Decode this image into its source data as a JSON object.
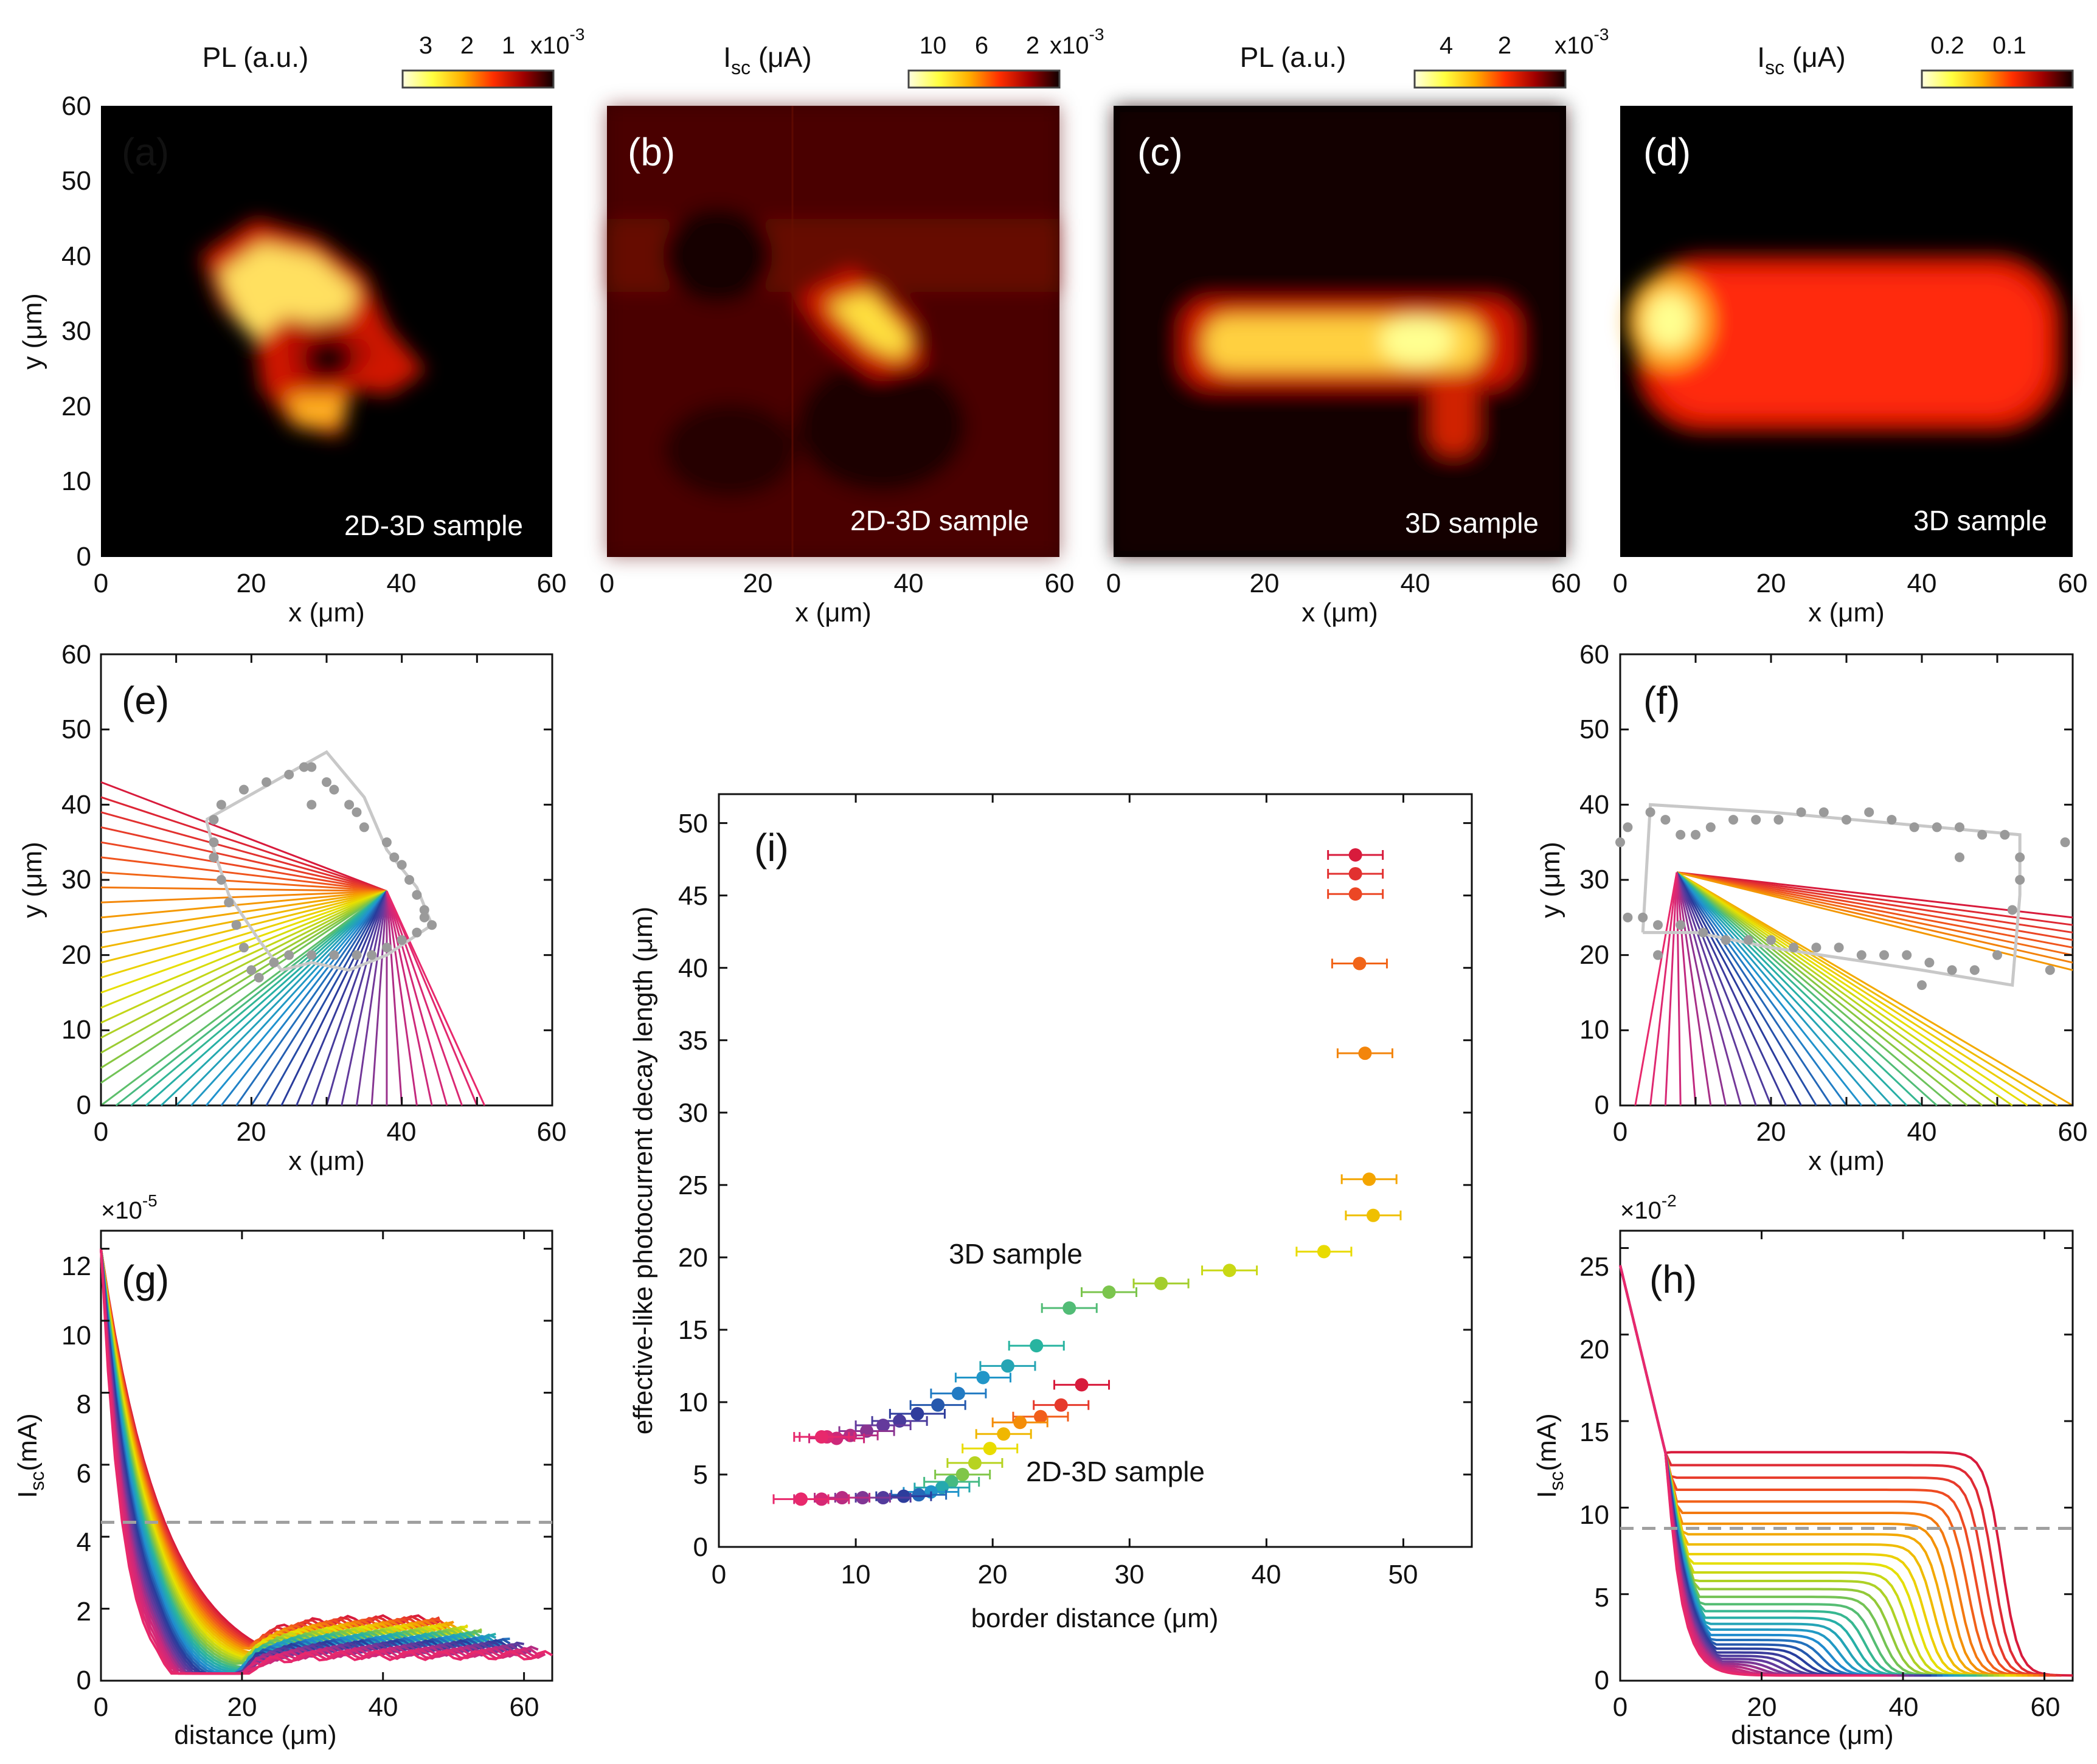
{
  "colors": {
    "hot_colormap": [
      "#ffffe0",
      "#ffff40",
      "#ffd000",
      "#ff8000",
      "#ff2000",
      "#b00000",
      "#500000",
      "#000000"
    ],
    "rainbow_fan": [
      "#d81b3c",
      "#f05020",
      "#f5a000",
      "#e8e000",
      "#8cc83c",
      "#28b4a0",
      "#2090d0",
      "#283c9c",
      "#6a3a9c",
      "#c8287c",
      "#e8286c"
    ],
    "boundary_gray": "#9a9a9a",
    "dashed_gray": "#a0a0a0"
  },
  "panels": {
    "a": {
      "label": "(a)",
      "caption": "2D-3D sample",
      "colorbar_title": "PL (a.u.)",
      "colorbar_ticks": [
        "3",
        "2",
        "1"
      ],
      "colorbar_exp": "x10",
      "colorbar_exp_power": "-3"
    },
    "b": {
      "label": "(b)",
      "caption": "2D-3D sample",
      "colorbar_title_main": "I",
      "colorbar_title_sub": "sc",
      "colorbar_title_unit": " (μA)",
      "colorbar_ticks": [
        "10",
        "6",
        "2"
      ],
      "colorbar_exp": "x10",
      "colorbar_exp_power": "-3"
    },
    "c": {
      "label": "(c)",
      "caption": "3D sample",
      "colorbar_title": "PL (a.u.)",
      "colorbar_ticks": [
        "4",
        "2"
      ],
      "colorbar_exp": "x10",
      "colorbar_exp_power": "-3"
    },
    "d": {
      "label": "(d)",
      "caption": "3D sample",
      "colorbar_title_main": "I",
      "colorbar_title_sub": "sc",
      "colorbar_title_unit": " (μA)",
      "colorbar_ticks": [
        "0.2",
        "0.1"
      ]
    },
    "e": {
      "label": "(e)"
    },
    "f": {
      "label": "(f)"
    },
    "g": {
      "label": "(g)",
      "exp_base": "×10",
      "exp_power": "-5"
    },
    "h": {
      "label": "(h)",
      "exp_base": "×10",
      "exp_power": "-2"
    },
    "i": {
      "label": "(i)",
      "series_label_3d": "3D sample",
      "series_label_2d3d": "2D-3D sample"
    }
  },
  "axes": {
    "x_um": "x (μm)",
    "y_um": "y (μm)",
    "distance": "distance (μm)",
    "isc_main": "I",
    "isc_sub": "sc",
    "isc_unit": "(mA)",
    "border_distance": "border distance (μm)",
    "decay_length": "effective-like photocurrent decay length (μm)",
    "ticks_0_60": [
      "0",
      "20",
      "40",
      "60"
    ],
    "ticks_y_0_60": [
      "0",
      "10",
      "20",
      "30",
      "40",
      "50",
      "60"
    ],
    "ticks_g_y": [
      "0",
      "2",
      "4",
      "6",
      "8",
      "10",
      "12"
    ],
    "ticks_h_y": [
      "0",
      "5",
      "10",
      "15",
      "20",
      "25"
    ],
    "ticks_i_x": [
      "0",
      "10",
      "20",
      "30",
      "40",
      "50"
    ],
    "ticks_i_y": [
      "0",
      "5",
      "10",
      "15",
      "20",
      "25",
      "30",
      "35",
      "40",
      "45",
      "50"
    ]
  },
  "chart_data": [
    {
      "type": "heatmap",
      "panel": "a",
      "xlabel": "x (μm)",
      "ylabel": "y (μm)",
      "xlim": [
        0,
        60
      ],
      "ylim": [
        0,
        60
      ],
      "colorbar": {
        "label": "PL (a.u.)",
        "scale": "x10^-3",
        "range": [
          0,
          3.5
        ]
      }
    },
    {
      "type": "heatmap",
      "panel": "b",
      "xlabel": "x (μm)",
      "xlim": [
        0,
        60
      ],
      "ylim": [
        0,
        60
      ],
      "colorbar": {
        "label": "Isc (μA)",
        "scale": "x10^-3",
        "range": [
          0,
          12
        ]
      }
    },
    {
      "type": "heatmap",
      "panel": "c",
      "xlabel": "x (μm)",
      "xlim": [
        0,
        60
      ],
      "ylim": [
        0,
        60
      ],
      "colorbar": {
        "label": "PL (a.u.)",
        "scale": "x10^-3",
        "range": [
          0,
          5
        ]
      }
    },
    {
      "type": "heatmap",
      "panel": "d",
      "xlabel": "x (μm)",
      "xlim": [
        0,
        60
      ],
      "ylim": [
        0,
        60
      ],
      "colorbar": {
        "label": "Isc (μA)",
        "range": [
          0,
          0.25
        ]
      }
    },
    {
      "type": "line",
      "panel": "e",
      "xlabel": "x (μm)",
      "ylabel": "y (μm)",
      "xlim": [
        0,
        60
      ],
      "ylim": [
        0,
        60
      ],
      "origin": [
        38,
        28.5
      ],
      "fan_endpoints_left_edge_y": [
        43,
        41,
        39,
        37,
        35,
        33,
        31,
        29,
        27,
        25,
        23,
        21,
        19,
        17,
        15,
        13,
        11,
        9,
        7,
        5,
        3
      ],
      "fan_endpoints_bottom_x": [
        0,
        2,
        4,
        6,
        8,
        10,
        12,
        14,
        16,
        18,
        20,
        22,
        24,
        26,
        28,
        30,
        32,
        34,
        36,
        38,
        40,
        42,
        44,
        46,
        48,
        50,
        51
      ],
      "boundary_polyline": [
        [
          14,
          38
        ],
        [
          30,
          47
        ],
        [
          35,
          41
        ],
        [
          38,
          34
        ],
        [
          42,
          29
        ],
        [
          44,
          24
        ],
        [
          38,
          20
        ],
        [
          33,
          18
        ],
        [
          28,
          19
        ],
        [
          24,
          18
        ],
        [
          21,
          22
        ],
        [
          17,
          28
        ],
        [
          15,
          34
        ],
        [
          14,
          38
        ]
      ],
      "boundary_points": [
        [
          15,
          38
        ],
        [
          16,
          40
        ],
        [
          19,
          42
        ],
        [
          22,
          43
        ],
        [
          25,
          44
        ],
        [
          27,
          45
        ],
        [
          28,
          45
        ],
        [
          30,
          43
        ],
        [
          31,
          42
        ],
        [
          28,
          40
        ],
        [
          33,
          40
        ],
        [
          34,
          39
        ],
        [
          35,
          37
        ],
        [
          38,
          35
        ],
        [
          39,
          33
        ],
        [
          40,
          32
        ],
        [
          41,
          30
        ],
        [
          42,
          28
        ],
        [
          43,
          26
        ],
        [
          44,
          24
        ],
        [
          43,
          25
        ],
        [
          42,
          23
        ],
        [
          40,
          22
        ],
        [
          38,
          21
        ],
        [
          36,
          20
        ],
        [
          34,
          20
        ],
        [
          31,
          20
        ],
        [
          28,
          20
        ],
        [
          25,
          20
        ],
        [
          23,
          19
        ],
        [
          21,
          17
        ],
        [
          20,
          18
        ],
        [
          19,
          21
        ],
        [
          18,
          24
        ],
        [
          17,
          27
        ],
        [
          16,
          30
        ],
        [
          15,
          33
        ],
        [
          15,
          35
        ]
      ]
    },
    {
      "type": "line",
      "panel": "f",
      "xlabel": "x (μm)",
      "ylabel": "y (μm)",
      "xlim": [
        0,
        60
      ],
      "ylim": [
        0,
        60
      ],
      "origin": [
        7.5,
        31
      ],
      "fan_endpoints_right_edge_y": [
        25,
        24,
        23,
        22,
        21,
        20,
        19,
        18
      ],
      "fan_endpoints_bottom_x": [
        2,
        4,
        6,
        8,
        10,
        12,
        14,
        16,
        18,
        20,
        22,
        24,
        26,
        28,
        30,
        32,
        34,
        36,
        38,
        40,
        42,
        44,
        46,
        48,
        50,
        52,
        54,
        56,
        58,
        60
      ],
      "boundary_polyline": [
        [
          3,
          23
        ],
        [
          4,
          40
        ],
        [
          20,
          39
        ],
        [
          53,
          36
        ],
        [
          53,
          28
        ],
        [
          52,
          16
        ],
        [
          40,
          18
        ],
        [
          20,
          21
        ],
        [
          10,
          23
        ],
        [
          3,
          23
        ]
      ],
      "boundary_points": [
        [
          0,
          35
        ],
        [
          1,
          37
        ],
        [
          4,
          39
        ],
        [
          6,
          38
        ],
        [
          8,
          36
        ],
        [
          10,
          36
        ],
        [
          12,
          37
        ],
        [
          15,
          38
        ],
        [
          18,
          38
        ],
        [
          21,
          38
        ],
        [
          24,
          39
        ],
        [
          27,
          39
        ],
        [
          30,
          38
        ],
        [
          33,
          39
        ],
        [
          36,
          38
        ],
        [
          39,
          37
        ],
        [
          42,
          37
        ],
        [
          45,
          37
        ],
        [
          48,
          36
        ],
        [
          51,
          36
        ],
        [
          53,
          33
        ],
        [
          53,
          30
        ],
        [
          52,
          26
        ],
        [
          50,
          20
        ],
        [
          47,
          18
        ],
        [
          44,
          18
        ],
        [
          41,
          19
        ],
        [
          38,
          20
        ],
        [
          35,
          20
        ],
        [
          32,
          20
        ],
        [
          29,
          21
        ],
        [
          26,
          21
        ],
        [
          23,
          21
        ],
        [
          20,
          22
        ],
        [
          17,
          22
        ],
        [
          14,
          22
        ],
        [
          11,
          23
        ],
        [
          8,
          24
        ],
        [
          5,
          24
        ],
        [
          3,
          25
        ],
        [
          1,
          25
        ],
        [
          5,
          20
        ],
        [
          59,
          35
        ],
        [
          57,
          18
        ],
        [
          40,
          16
        ],
        [
          45,
          33
        ]
      ]
    },
    {
      "type": "line",
      "panel": "g",
      "xlabel": "distance (μm)",
      "ylabel": "Isc (mA)",
      "y_scale": "×10^-5",
      "xlim": [
        0,
        64
      ],
      "ylim": [
        0,
        12.5
      ],
      "dashed_threshold_y": 4.4,
      "series_envelope_start_y": 12,
      "notes_rendered": false
    },
    {
      "type": "line",
      "panel": "h",
      "xlabel": "distance (μm)",
      "ylabel": "Isc (mA)",
      "y_scale": "×10^-2",
      "xlim": [
        0,
        64
      ],
      "ylim": [
        0,
        26
      ],
      "dashed_threshold_y": 8.8,
      "series_envelope_start_y": 24
    },
    {
      "type": "scatter",
      "panel": "i",
      "xlabel": "border distance (μm)",
      "ylabel": "effective-like photocurrent decay length (μm)",
      "xlim": [
        0,
        55
      ],
      "ylim": [
        0,
        52
      ],
      "series": [
        {
          "name": "3D sample",
          "points": [
            [
              46.5,
              47.8
            ],
            [
              46.5,
              46.5
            ],
            [
              46.5,
              45.1
            ],
            [
              46.8,
              40.3
            ],
            [
              47.2,
              34.1
            ],
            [
              47.5,
              25.4
            ],
            [
              47.8,
              22.9
            ],
            [
              44.2,
              20.4
            ],
            [
              37.3,
              19.1
            ],
            [
              32.3,
              18.2
            ],
            [
              28.5,
              17.6
            ],
            [
              25.6,
              16.5
            ],
            [
              23.2,
              13.9
            ],
            [
              21.1,
              12.5
            ],
            [
              19.3,
              11.7
            ],
            [
              17.5,
              10.6
            ],
            [
              16.0,
              9.8
            ],
            [
              14.5,
              9.2
            ],
            [
              13.2,
              8.7
            ],
            [
              12.0,
              8.4
            ],
            [
              10.8,
              8.0
            ],
            [
              9.6,
              7.7
            ],
            [
              8.6,
              7.5
            ],
            [
              7.9,
              7.6
            ],
            [
              7.5,
              7.6
            ]
          ],
          "xerr": 2
        },
        {
          "name": "2D-3D sample",
          "points": [
            [
              26.5,
              11.2
            ],
            [
              25.0,
              9.8
            ],
            [
              23.5,
              9.0
            ],
            [
              22.0,
              8.6
            ],
            [
              20.8,
              7.8
            ],
            [
              19.8,
              6.8
            ],
            [
              18.7,
              5.8
            ],
            [
              17.8,
              5.0
            ],
            [
              17.0,
              4.5
            ],
            [
              16.3,
              4.1
            ],
            [
              15.5,
              3.8
            ],
            [
              14.6,
              3.6
            ],
            [
              13.5,
              3.5
            ],
            [
              12.0,
              3.4
            ],
            [
              10.5,
              3.4
            ],
            [
              9.0,
              3.4
            ],
            [
              7.5,
              3.3
            ],
            [
              6.0,
              3.3
            ]
          ],
          "xerr": 2
        }
      ]
    }
  ]
}
